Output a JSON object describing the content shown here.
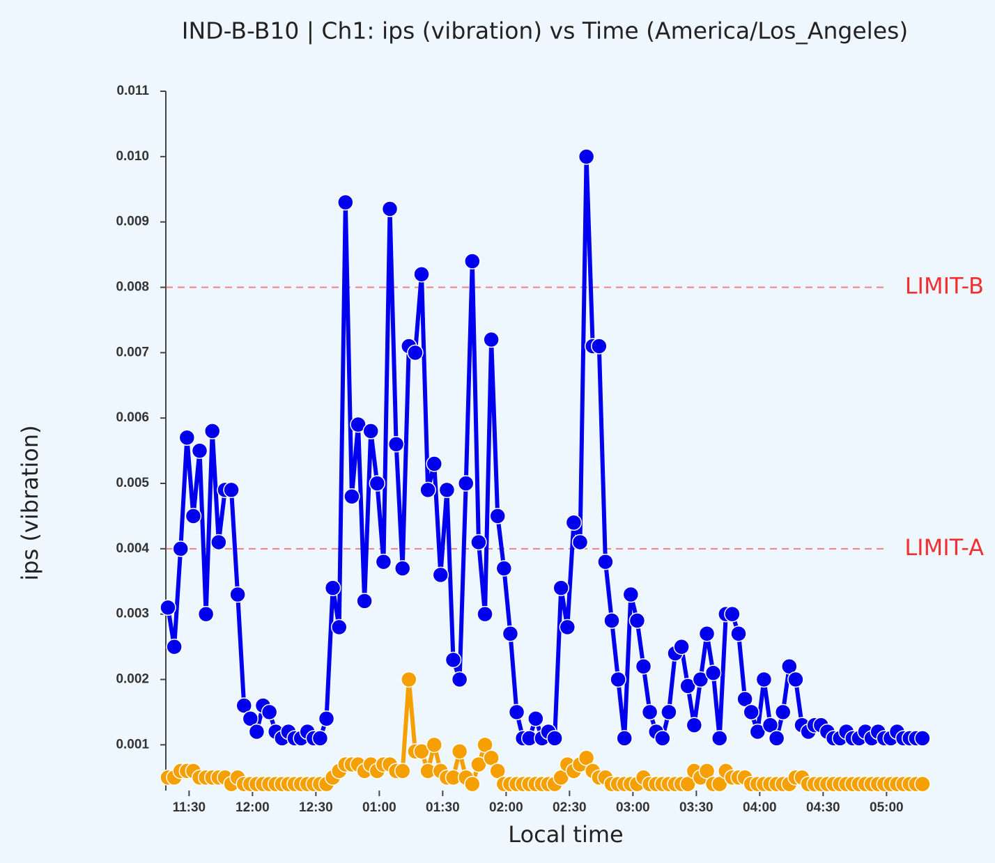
{
  "chart_data": {
    "type": "line",
    "title": "IND-B-B10 | Ch1: ips (vibration) vs Time (America/Los_Angeles)",
    "x_label": "Local time",
    "y_label": "ips (vibration)",
    "x": [
      "11:20",
      "11:23",
      "11:26",
      "11:29",
      "11:32",
      "11:35",
      "11:38",
      "11:41",
      "11:44",
      "11:47",
      "11:50",
      "11:53",
      "11:56",
      "11:59",
      "12:02",
      "12:05",
      "12:08",
      "12:11",
      "12:14",
      "12:17",
      "12:20",
      "12:23",
      "12:26",
      "12:29",
      "12:32",
      "12:35",
      "12:38",
      "12:41",
      "12:44",
      "12:47",
      "12:50",
      "12:53",
      "12:56",
      "12:59",
      "13:02",
      "13:05",
      "13:08",
      "13:11",
      "13:14",
      "13:17",
      "13:20",
      "13:23",
      "13:26",
      "13:29",
      "13:32",
      "13:35",
      "13:38",
      "13:41",
      "13:44",
      "13:47",
      "13:50",
      "13:53",
      "13:56",
      "13:59",
      "14:02",
      "14:05",
      "14:08",
      "14:11",
      "14:14",
      "14:17",
      "14:20",
      "14:23",
      "14:26",
      "14:29",
      "14:32",
      "14:35",
      "14:38",
      "14:41",
      "14:44",
      "14:47",
      "14:50",
      "14:53",
      "14:56",
      "14:59",
      "15:02",
      "15:05",
      "15:08",
      "15:11",
      "15:14",
      "15:17",
      "15:20",
      "15:23",
      "15:26",
      "15:29",
      "15:32",
      "15:35",
      "15:38",
      "15:41",
      "15:44",
      "15:47",
      "15:50",
      "15:53",
      "15:56",
      "15:59",
      "16:02",
      "16:05",
      "16:08",
      "16:11",
      "16:14",
      "16:17",
      "16:20",
      "16:23",
      "16:26",
      "16:29",
      "16:32",
      "16:35",
      "16:38",
      "16:41",
      "16:44",
      "16:47",
      "16:50",
      "16:53",
      "16:56",
      "16:59",
      "17:02",
      "17:05",
      "17:08",
      "17:11",
      "17:14",
      "17:17"
    ],
    "series": [
      {
        "color": "#0000ee",
        "values": [
          0.0031,
          0.0025,
          0.004,
          0.0057,
          0.0045,
          0.0055,
          0.003,
          0.0058,
          0.0041,
          0.0049,
          0.0049,
          0.0033,
          0.0016,
          0.0014,
          0.0012,
          0.0016,
          0.0015,
          0.0012,
          0.0011,
          0.0012,
          0.0011,
          0.0011,
          0.0012,
          0.0011,
          0.0011,
          0.0014,
          0.0034,
          0.0028,
          0.0093,
          0.0048,
          0.0059,
          0.0032,
          0.0058,
          0.005,
          0.0038,
          0.0092,
          0.0056,
          0.0037,
          0.0071,
          0.007,
          0.0082,
          0.0049,
          0.0053,
          0.0036,
          0.0049,
          0.0023,
          0.002,
          0.005,
          0.0084,
          0.0041,
          0.003,
          0.0072,
          0.0045,
          0.0037,
          0.0027,
          0.0015,
          0.0011,
          0.0011,
          0.0014,
          0.0011,
          0.0012,
          0.0011,
          0.0034,
          0.0028,
          0.0044,
          0.0041,
          0.01,
          0.0071,
          0.0071,
          0.0038,
          0.0029,
          0.002,
          0.0011,
          0.0033,
          0.0029,
          0.0022,
          0.0015,
          0.0012,
          0.0011,
          0.0015,
          0.0024,
          0.0025,
          0.0019,
          0.0013,
          0.002,
          0.0027,
          0.0021,
          0.0011,
          0.003,
          0.003,
          0.0027,
          0.0017,
          0.0015,
          0.0012,
          0.002,
          0.0013,
          0.0011,
          0.0015,
          0.0022,
          0.002,
          0.0013,
          0.0012,
          0.0013,
          0.0013,
          0.0012,
          0.0011,
          0.0011,
          0.0012,
          0.0011,
          0.0011,
          0.0012,
          0.0011,
          0.0012,
          0.0011,
          0.0011,
          0.0012,
          0.0011,
          0.0011,
          0.0011,
          0.0011
        ]
      },
      {
        "color": "#f5a000",
        "values": [
          0.0005,
          0.0005,
          0.0006,
          0.0006,
          0.0006,
          0.0005,
          0.0005,
          0.0005,
          0.0005,
          0.0005,
          0.0004,
          0.0005,
          0.0004,
          0.0004,
          0.0004,
          0.0004,
          0.0004,
          0.0004,
          0.0004,
          0.0004,
          0.0004,
          0.0004,
          0.0004,
          0.0004,
          0.0004,
          0.0004,
          0.0005,
          0.0006,
          0.0007,
          0.0007,
          0.0007,
          0.0006,
          0.0007,
          0.0006,
          0.0007,
          0.0007,
          0.0006,
          0.0006,
          0.002,
          0.0009,
          0.0009,
          0.0006,
          0.001,
          0.0006,
          0.0005,
          0.0005,
          0.0009,
          0.0005,
          0.0004,
          0.0007,
          0.001,
          0.0008,
          0.0006,
          0.0004,
          0.0004,
          0.0004,
          0.0004,
          0.0004,
          0.0004,
          0.0004,
          0.0004,
          0.0004,
          0.0005,
          0.0007,
          0.0006,
          0.0007,
          0.0008,
          0.0006,
          0.0005,
          0.0005,
          0.0004,
          0.0004,
          0.0004,
          0.0004,
          0.0004,
          0.0005,
          0.0004,
          0.0004,
          0.0004,
          0.0004,
          0.0004,
          0.0004,
          0.0004,
          0.0006,
          0.0005,
          0.0006,
          0.0004,
          0.0004,
          0.0006,
          0.0005,
          0.0005,
          0.0005,
          0.0004,
          0.0004,
          0.0004,
          0.0004,
          0.0004,
          0.0004,
          0.0004,
          0.0005,
          0.0005,
          0.0004,
          0.0004,
          0.0004,
          0.0004,
          0.0004,
          0.0004,
          0.0004,
          0.0004,
          0.0004,
          0.0004,
          0.0004,
          0.0004,
          0.0004,
          0.0004,
          0.0004,
          0.0004,
          0.0004,
          0.0004,
          0.0004
        ]
      }
    ],
    "xlim": [
      "11:19",
      "17:20"
    ],
    "xticks": [
      "11:30",
      "12:00",
      "12:30",
      {
        "value": "13:00",
        "label": "01:00"
      },
      {
        "value": "13:30",
        "label": "01:30"
      },
      {
        "value": "14:00",
        "label": "02:00"
      },
      {
        "value": "14:30",
        "label": "02:30"
      },
      {
        "value": "15:00",
        "label": "03:00"
      },
      {
        "value": "15:30",
        "label": "03:30"
      },
      {
        "value": "16:00",
        "label": "04:00"
      },
      {
        "value": "16:30",
        "label": "04:30"
      },
      {
        "value": "17:00",
        "label": "05:00"
      }
    ],
    "ylim": [
      0.0003,
      0.011
    ],
    "yticks": [
      0.001,
      0.002,
      0.003,
      0.004,
      0.005,
      0.006,
      0.007,
      0.008,
      0.009,
      {
        "value": 0.01,
        "label": "0.010"
      },
      0.011
    ],
    "reference_lines": [
      {
        "label": "LIMIT-B",
        "value": 0.008,
        "color": "#f03030"
      },
      {
        "label": "LIMIT-A",
        "value": 0.004,
        "color": "#f03030"
      }
    ]
  }
}
